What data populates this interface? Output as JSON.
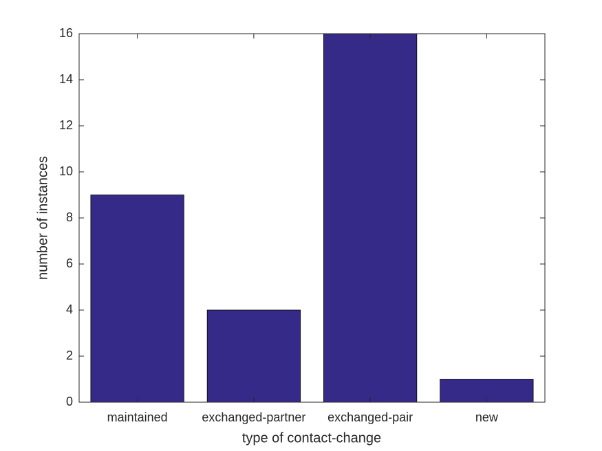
{
  "chart_data": {
    "type": "bar",
    "xlabel": "type of contact-change",
    "ylabel": "number of instances",
    "categories": [
      "maintained",
      "exchanged-partner",
      "exchanged-pair",
      "new"
    ],
    "values": [
      9,
      4,
      16,
      1
    ],
    "color": "#352a87",
    "ylim": [
      0,
      16
    ],
    "yticks": [
      0,
      2,
      4,
      6,
      8,
      10,
      12,
      14,
      16
    ],
    "grid": false
  }
}
